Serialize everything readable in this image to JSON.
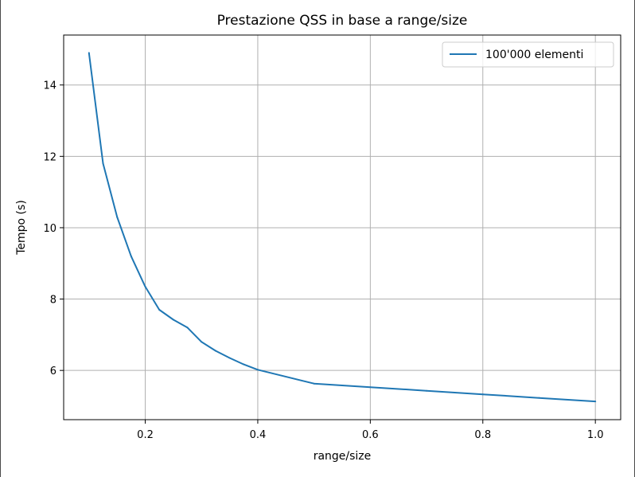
{
  "chart_data": {
    "type": "line",
    "title": "Prestazione QSS in base a range/size",
    "xlabel": "range/size",
    "ylabel": "Tempo (s)",
    "xlim": [
      0.055,
      1.045
    ],
    "ylim": [
      4.62,
      15.4
    ],
    "xticks": [
      0.2,
      0.4,
      0.6,
      0.8,
      1.0
    ],
    "xtick_labels": [
      "0.2",
      "0.4",
      "0.6",
      "0.8",
      "1.0"
    ],
    "yticks": [
      6,
      8,
      10,
      12,
      14
    ],
    "ytick_labels": [
      "6",
      "8",
      "10",
      "12",
      "14"
    ],
    "grid": true,
    "legend": {
      "position": "top-right"
    },
    "series": [
      {
        "name": "100'000 elementi",
        "color": "#1f77b4",
        "x": [
          0.1,
          0.125,
          0.15,
          0.175,
          0.2,
          0.225,
          0.25,
          0.275,
          0.3,
          0.325,
          0.35,
          0.375,
          0.4,
          0.5,
          0.6,
          0.7,
          0.8,
          0.9,
          1.0
        ],
        "y": [
          14.9,
          11.8,
          10.3,
          9.2,
          8.35,
          7.7,
          7.42,
          7.2,
          6.8,
          6.55,
          6.35,
          6.17,
          6.02,
          5.63,
          5.53,
          5.43,
          5.33,
          5.23,
          5.13
        ]
      }
    ]
  }
}
